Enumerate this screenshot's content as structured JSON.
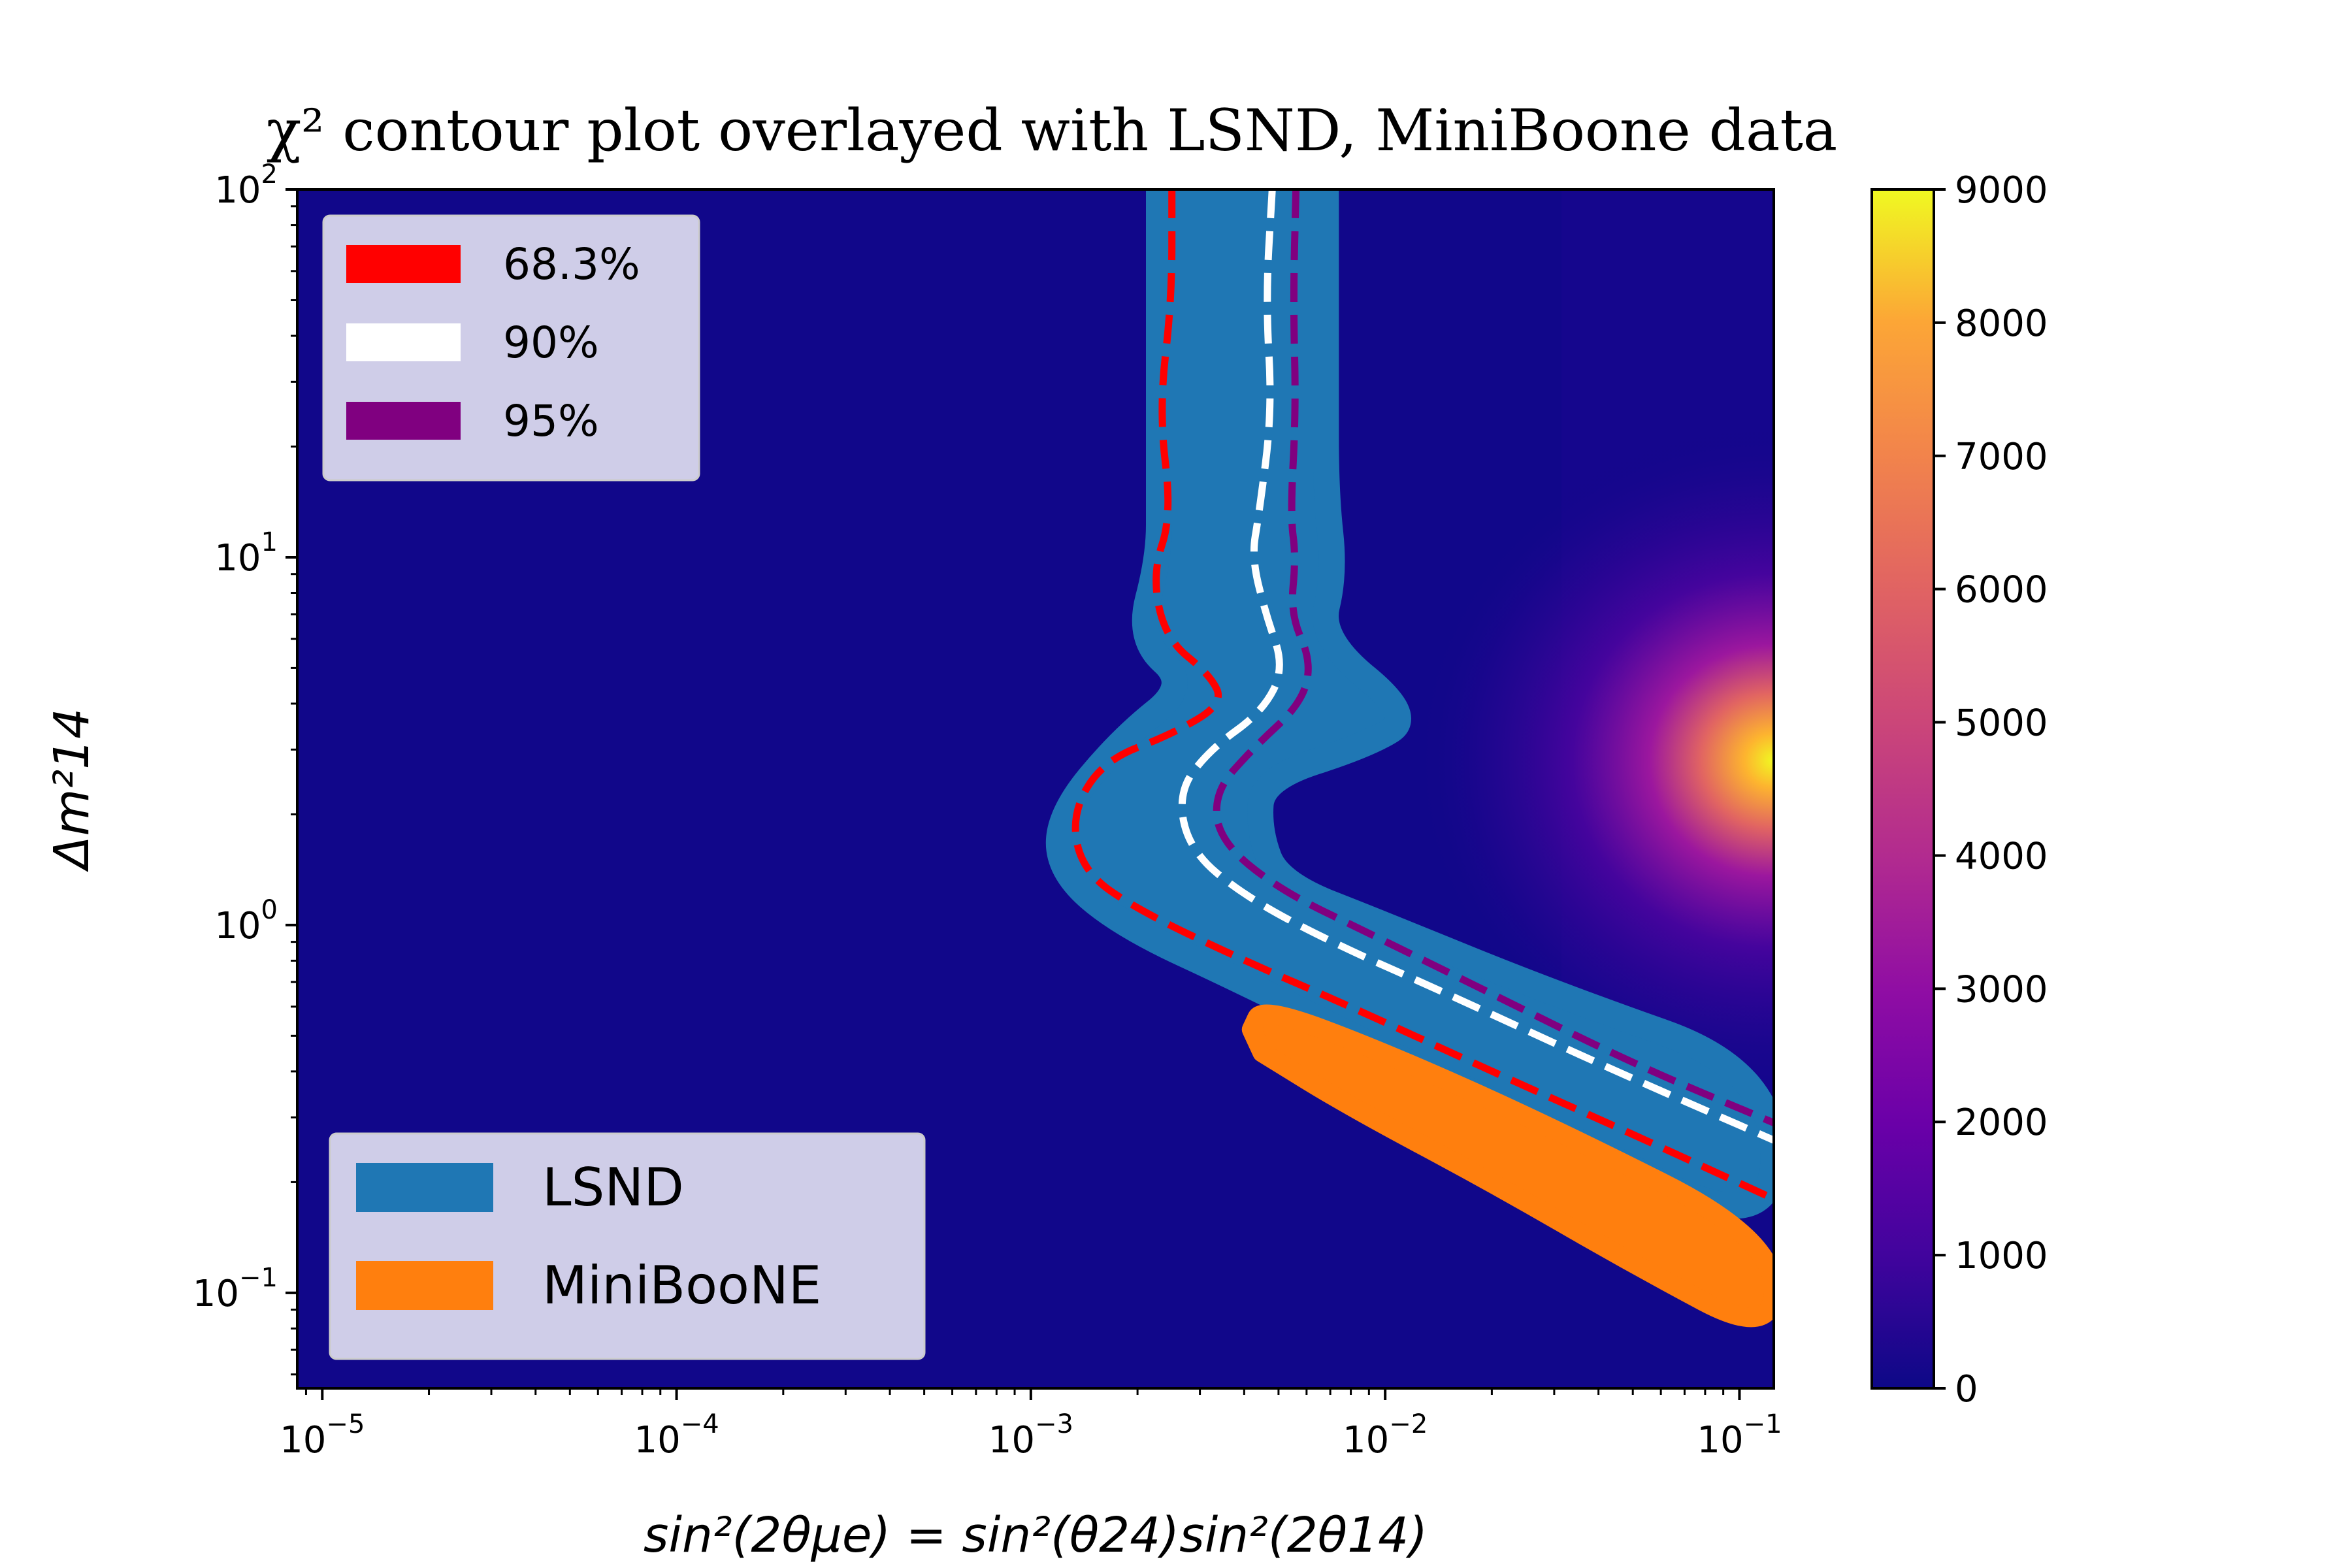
{
  "chart_data": {
    "type": "heatmap",
    "title": "χ² contour plot overlayed with LSND, MiniBoone data",
    "xlabel": "sin²(2θμe) = sin²(θ24)sin²(2θ14)",
    "ylabel": "Δm²14",
    "x_scale": "log",
    "y_scale": "log",
    "xlim": [
      8.5e-06,
      0.125
    ],
    "ylim": [
      0.055,
      100
    ],
    "x_ticks": [
      {
        "value": 1e-05,
        "base": "10",
        "exp": "−5"
      },
      {
        "value": 0.0001,
        "base": "10",
        "exp": "−4"
      },
      {
        "value": 0.001,
        "base": "10",
        "exp": "−3"
      },
      {
        "value": 0.01,
        "base": "10",
        "exp": "−2"
      },
      {
        "value": 0.1,
        "base": "10",
        "exp": "−1"
      }
    ],
    "y_ticks": [
      {
        "value": 0.1,
        "base": "10",
        "exp": "−1"
      },
      {
        "value": 1,
        "base": "10",
        "exp": "0"
      },
      {
        "value": 10,
        "base": "10",
        "exp": "1"
      },
      {
        "value": 100,
        "base": "10",
        "exp": "2"
      }
    ],
    "colorbar": {
      "min": 0,
      "max": 9000,
      "ticks": [
        "0",
        "1000",
        "2000",
        "3000",
        "4000",
        "5000",
        "6000",
        "7000",
        "8000",
        "9000"
      ],
      "colormap": "plasma"
    },
    "hotspot": {
      "x": 0.125,
      "y": 2.8,
      "value": 9000
    },
    "contour_legend": {
      "position": "upper-left",
      "entries": [
        {
          "label": "68.3%",
          "color": "#ff0000"
        },
        {
          "label": "90%",
          "color": "#ffffff"
        },
        {
          "label": "95%",
          "color": "#800080"
        }
      ]
    },
    "region_legend": {
      "position": "lower-left",
      "entries": [
        {
          "label": "LSND",
          "color": "#1f77b4"
        },
        {
          "label": "MiniBooNE",
          "color": "#ff7f0e"
        }
      ]
    },
    "contours": [
      {
        "level": "68.3%",
        "color": "#ff0000",
        "points": [
          [
            0.0025,
            100
          ],
          [
            0.0025,
            50
          ],
          [
            0.0023,
            25
          ],
          [
            0.0025,
            13
          ],
          [
            0.0022,
            9
          ],
          [
            0.0024,
            6
          ],
          [
            0.0032,
            4.8
          ],
          [
            0.0035,
            4
          ],
          [
            0.0025,
            3.3
          ],
          [
            0.0016,
            2.8
          ],
          [
            0.0013,
            2.0
          ],
          [
            0.0014,
            1.4
          ],
          [
            0.002,
            1.1
          ],
          [
            0.004,
            0.8
          ],
          [
            0.008,
            0.6
          ],
          [
            0.02,
            0.4
          ],
          [
            0.05,
            0.27
          ],
          [
            0.125,
            0.18
          ]
        ]
      },
      {
        "level": "90%",
        "color": "#ffffff",
        "points": [
          [
            0.0048,
            100
          ],
          [
            0.0046,
            50
          ],
          [
            0.0048,
            25
          ],
          [
            0.0044,
            13
          ],
          [
            0.0042,
            10
          ],
          [
            0.0046,
            7
          ],
          [
            0.0052,
            5
          ],
          [
            0.0045,
            3.8
          ],
          [
            0.0032,
            3
          ],
          [
            0.0026,
            2.3
          ],
          [
            0.0028,
            1.6
          ],
          [
            0.004,
            1.2
          ],
          [
            0.007,
            0.9
          ],
          [
            0.015,
            0.65
          ],
          [
            0.04,
            0.42
          ],
          [
            0.125,
            0.26
          ]
        ]
      },
      {
        "level": "95%",
        "color": "#800080",
        "points": [
          [
            0.0056,
            100
          ],
          [
            0.0055,
            50
          ],
          [
            0.0056,
            25
          ],
          [
            0.0054,
            13
          ],
          [
            0.0056,
            10
          ],
          [
            0.0054,
            7
          ],
          [
            0.0062,
            5.2
          ],
          [
            0.0058,
            4
          ],
          [
            0.0042,
            3
          ],
          [
            0.0033,
            2.3
          ],
          [
            0.0034,
            1.7
          ],
          [
            0.005,
            1.25
          ],
          [
            0.009,
            0.95
          ],
          [
            0.02,
            0.65
          ],
          [
            0.05,
            0.42
          ],
          [
            0.125,
            0.29
          ]
        ]
      }
    ],
    "lsnd_band": {
      "left": [
        [
          0.0023,
          100
        ],
        [
          0.0023,
          30
        ],
        [
          0.0023,
          15
        ],
        [
          0.0023,
          10
        ],
        [
          0.002,
          6
        ],
        [
          0.0028,
          4.5
        ],
        [
          0.0018,
          3.2
        ],
        [
          0.0012,
          2
        ],
        [
          0.0012,
          1.4
        ],
        [
          0.0018,
          1.0
        ],
        [
          0.004,
          0.7
        ],
        [
          0.01,
          0.45
        ],
        [
          0.03,
          0.28
        ],
        [
          0.125,
          0.14
        ]
      ],
      "right": [
        [
          0.0068,
          100
        ],
        [
          0.0068,
          30
        ],
        [
          0.0068,
          15
        ],
        [
          0.0072,
          9
        ],
        [
          0.0065,
          6
        ],
        [
          0.012,
          3.7
        ],
        [
          0.009,
          3.1
        ],
        [
          0.0045,
          2.5
        ],
        [
          0.0044,
          1.8
        ],
        [
          0.005,
          1.3
        ],
        [
          0.01,
          1.0
        ],
        [
          0.03,
          0.65
        ],
        [
          0.125,
          0.4
        ]
      ]
    },
    "miniboone_band": {
      "upper": [
        [
          0.0042,
          0.52
        ],
        [
          0.0045,
          0.6
        ],
        [
          0.01,
          0.45
        ],
        [
          0.03,
          0.28
        ],
        [
          0.125,
          0.14
        ]
      ],
      "lower": [
        [
          0.125,
          0.075
        ],
        [
          0.05,
          0.12
        ],
        [
          0.02,
          0.2
        ],
        [
          0.008,
          0.32
        ],
        [
          0.0045,
          0.45
        ]
      ]
    }
  }
}
